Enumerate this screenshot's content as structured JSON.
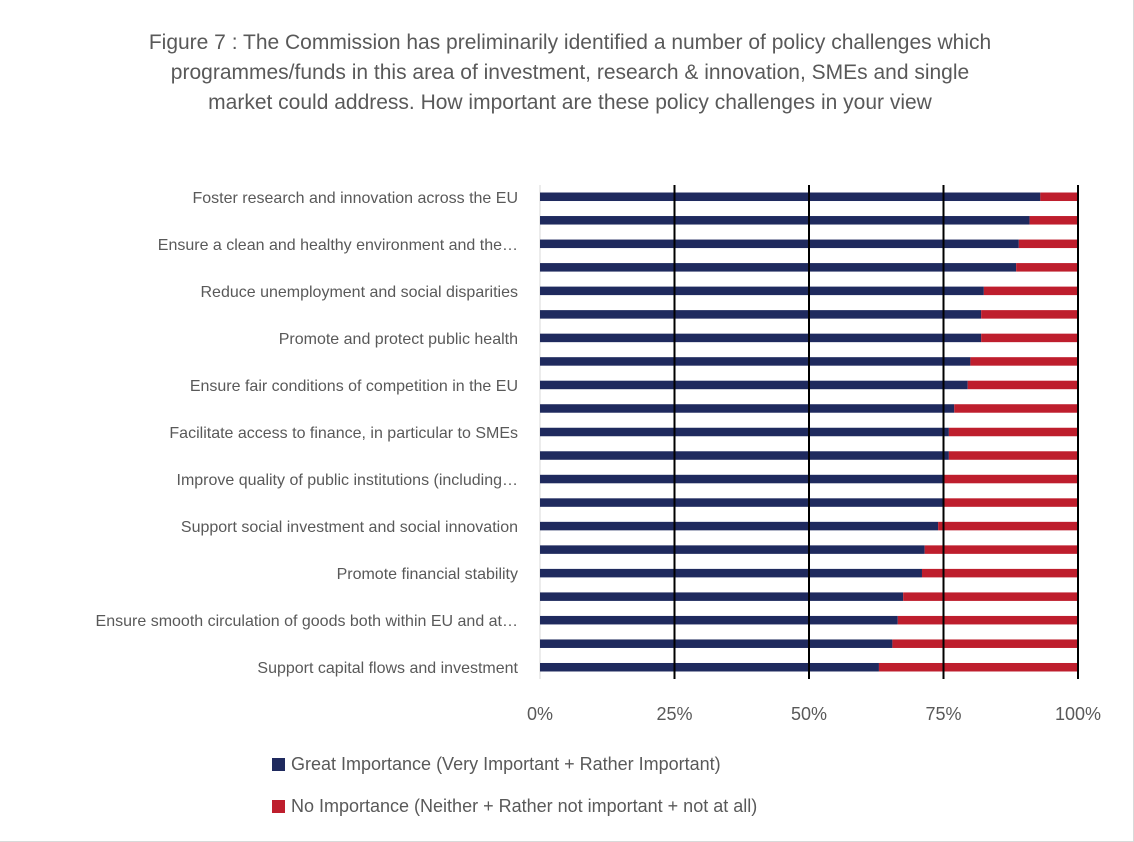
{
  "chart_data": {
    "type": "bar",
    "orientation": "horizontal",
    "stacked": true,
    "title": "Figure 7 : The Commission has preliminarily identified a number of policy challenges which programmes/funds in this area of investment, research & innovation, SMEs and single market could address. How important are these policy challenges in your view",
    "categories": [
      "Foster research and innovation across the EU",
      "",
      "Ensure a clean and healthy environment and the…",
      "",
      "Reduce unemployment and social disparities",
      "",
      "Promote and protect public health",
      "",
      "Ensure fair conditions of competition in the EU",
      "",
      "Facilitate access to finance, in particular to SMEs",
      "",
      "Improve quality of public institutions (including…",
      "",
      "Support social investment and social innovation",
      "",
      "Promote financial stability",
      "",
      "Ensure smooth circulation of goods both within EU and at…",
      "",
      "Support capital flows and investment"
    ],
    "series": [
      {
        "name": "Great Importance (Very Important + Rather Important)",
        "color": "#1f2a5e",
        "values": [
          93,
          91,
          89,
          88.5,
          82.5,
          82,
          82,
          80,
          79.5,
          77,
          76,
          76,
          75,
          75,
          74,
          71.5,
          71,
          67.5,
          66.5,
          65.5,
          63
        ]
      },
      {
        "name": "No Importance (Neither + Rather not important + not at all)",
        "color": "#be1e2d",
        "values": [
          7,
          9,
          11,
          11.5,
          17.5,
          18,
          18,
          20,
          20.5,
          23,
          24,
          24,
          25,
          25,
          26,
          28.5,
          29,
          32.5,
          33.5,
          34.5,
          37
        ]
      }
    ],
    "xlim": [
      0,
      100
    ],
    "xticks": [
      "0%",
      "25%",
      "50%",
      "75%",
      "100%"
    ],
    "grid": true,
    "legend_position": "bottom"
  }
}
